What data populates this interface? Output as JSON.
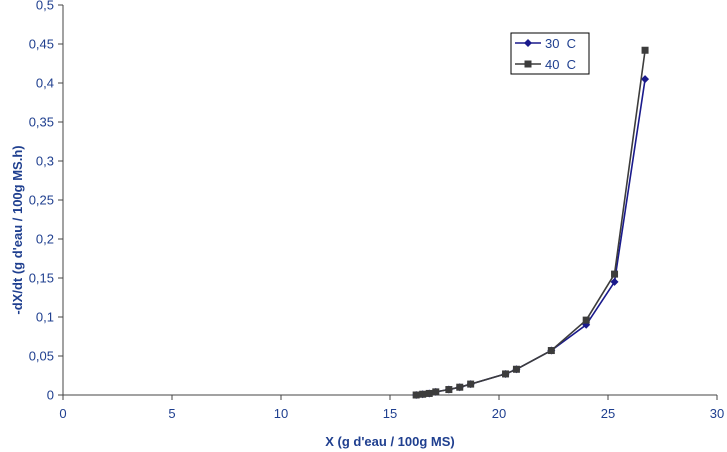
{
  "chart_data": {
    "type": "line",
    "title": "",
    "xlabel": "X (g d'eau / 100g MS)",
    "ylabel": "-dX/dt (g d'eau / 100g MS.h)",
    "xlim": [
      0,
      30
    ],
    "ylim": [
      0,
      0.5
    ],
    "xticks": [
      "0",
      "5",
      "10",
      "15",
      "20",
      "25",
      "30"
    ],
    "yticks": [
      "0",
      "0,05",
      "0,1",
      "0,15",
      "0,2",
      "0,25",
      "0,3",
      "0,35",
      "0,4",
      "0,45",
      "0,5"
    ],
    "grid": false,
    "legend_position": "top-right",
    "series": [
      {
        "name": "30  C",
        "color": "#1a1a8c",
        "marker": "diamond",
        "points": [
          [
            16.2,
            0.0
          ],
          [
            16.5,
            0.001
          ],
          [
            16.8,
            0.002
          ],
          [
            17.1,
            0.004
          ],
          [
            17.7,
            0.007
          ],
          [
            18.2,
            0.01
          ],
          [
            18.7,
            0.014
          ],
          [
            20.3,
            0.027
          ],
          [
            20.8,
            0.033
          ],
          [
            22.4,
            0.057
          ],
          [
            24.0,
            0.09
          ],
          [
            25.3,
            0.145
          ],
          [
            26.7,
            0.405
          ]
        ]
      },
      {
        "name": "40  C",
        "color": "#3c3c3c",
        "marker": "square",
        "points": [
          [
            16.2,
            0.0
          ],
          [
            16.5,
            0.001
          ],
          [
            16.8,
            0.002
          ],
          [
            17.1,
            0.004
          ],
          [
            17.7,
            0.007
          ],
          [
            18.2,
            0.01
          ],
          [
            18.7,
            0.014
          ],
          [
            20.3,
            0.027
          ],
          [
            20.8,
            0.033
          ],
          [
            22.4,
            0.057
          ],
          [
            24.0,
            0.096
          ],
          [
            25.3,
            0.155
          ],
          [
            26.7,
            0.442
          ]
        ]
      }
    ]
  }
}
